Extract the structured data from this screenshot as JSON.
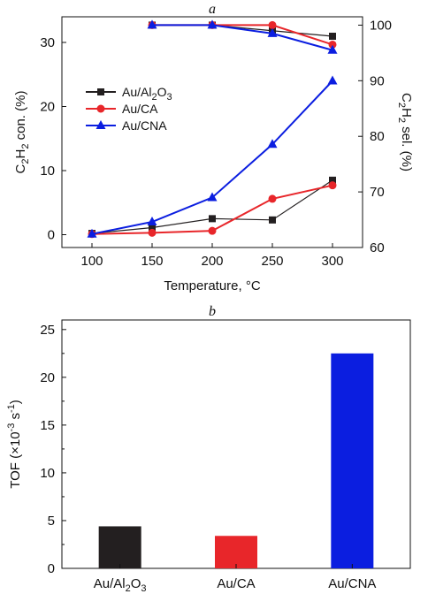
{
  "chart_data": [
    {
      "panel": "a",
      "type": "line",
      "title": "a",
      "xlabel": "Temperature, °C",
      "ylabel_left": "C2H2 con. (%)",
      "ylabel_right": "C2H2 sel. (%)",
      "x": [
        100,
        150,
        200,
        250,
        300
      ],
      "xlim": [
        75,
        325
      ],
      "ylim_left": [
        -2,
        34
      ],
      "ylim_right": [
        60,
        101.5
      ],
      "yticks_left": [
        0,
        10,
        20,
        30
      ],
      "yticks_right": [
        60,
        70,
        80,
        90,
        100
      ],
      "xticks": [
        100,
        150,
        200,
        250,
        300
      ],
      "legend_position": "upper-left",
      "grid": false,
      "series": [
        {
          "name": "Au/Al2O3",
          "color": "#231f20",
          "marker": "square",
          "conversion": [
            0.2,
            1.1,
            2.5,
            2.3,
            8.5
          ],
          "selectivity": [
            null,
            100.0,
            100.0,
            99.0,
            98.0
          ]
        },
        {
          "name": "Au/CA",
          "color": "#e8262a",
          "marker": "circle",
          "conversion": [
            0.1,
            0.3,
            0.6,
            5.6,
            7.7
          ],
          "selectivity": [
            null,
            100.0,
            100.0,
            100.0,
            96.5
          ]
        },
        {
          "name": "Au/CNA",
          "color": "#0b1ee0",
          "marker": "triangle",
          "conversion": [
            0.1,
            2.0,
            5.8,
            14.1,
            24.0
          ],
          "selectivity": [
            null,
            100.0,
            100.0,
            98.5,
            95.5
          ]
        }
      ]
    },
    {
      "panel": "b",
      "type": "bar",
      "title": "b",
      "xlabel": "",
      "ylabel": "TOF (×10⁻³ s⁻¹)",
      "categories": [
        "Au/Al2O3",
        "Au/CA",
        "Au/CNA"
      ],
      "values": [
        4.4,
        3.4,
        22.5
      ],
      "colors": [
        "#231f20",
        "#e8262a",
        "#0b1ee0"
      ],
      "ylim": [
        0,
        26
      ],
      "yticks": [
        0,
        5,
        10,
        15,
        20,
        25
      ],
      "grid": false
    }
  ]
}
